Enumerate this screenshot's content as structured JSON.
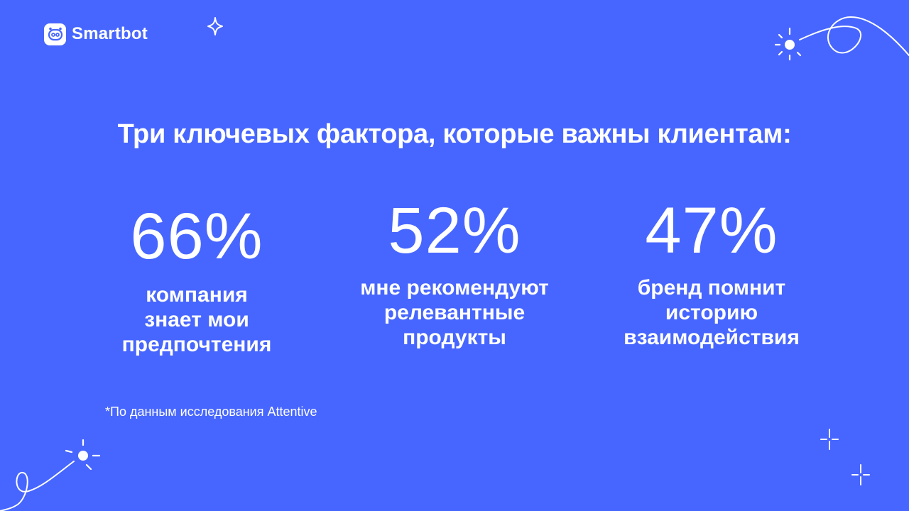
{
  "brand": {
    "name": "Smartbot",
    "logo_icon": "robot-head-icon"
  },
  "headline": "Три ключевых фактора, которые важны клиентам:",
  "stats": [
    {
      "value": "66%",
      "caption": "компания\nзнает мои\nпредпочтения"
    },
    {
      "value": "52%",
      "caption": "мне рекомендуют\nрелевантные\nпродукты"
    },
    {
      "value": "47%",
      "caption": "бренд помнит\nисторию\nвзаимодействия"
    }
  ],
  "footnote": "*По данным исследования Attentive",
  "colors": {
    "background": "#4766FF",
    "foreground": "#FFFFFF"
  }
}
